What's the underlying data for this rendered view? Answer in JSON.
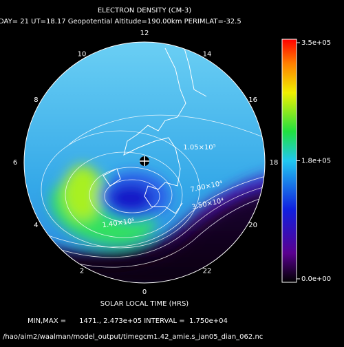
{
  "header": {
    "title": "ELECTRON DENSITY (CM-3)",
    "subtitle": "DAY= 21 UT=18.17 Geopotential Altitude=190.00km PERIMLAT=-32.5"
  },
  "hour_labels": [
    "12",
    "14",
    "16",
    "18",
    "20",
    "22",
    "0",
    "2",
    "4",
    "6",
    "8",
    "10"
  ],
  "contour_labels": [
    "1.05×10⁵",
    "7.00×10⁴",
    "3.50×10⁴",
    "1.40×10⁵"
  ],
  "colorbar": {
    "ticks": [
      "3.5e+05",
      "1.8e+05",
      "0.0e+00"
    ]
  },
  "x_label": "SOLAR LOCAL TIME (HRS)",
  "footer": {
    "minmax": "MIN,MAX =      1471., 2.473e+05 INTERVAL =  1.750e+04",
    "file": "/hao/aim2/waalman/model_output/timegcm1.42_amie.s_jan05_dian_062.nc"
  }
}
